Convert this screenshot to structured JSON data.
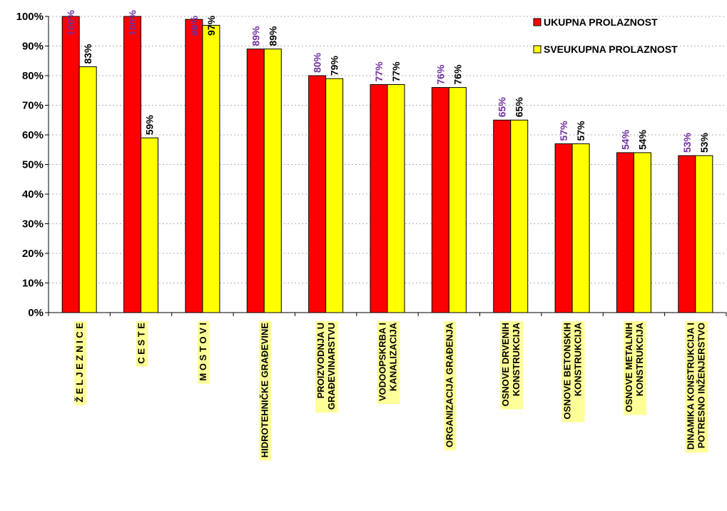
{
  "colors": {
    "series1": "#ff0000",
    "series2": "#ffff00",
    "label1": "#7030a0",
    "label2": "#000000",
    "category_highlight": "#ffff99",
    "grid": "#b0b0b0"
  },
  "chart_data": {
    "type": "bar",
    "title": "",
    "xlabel": "",
    "ylabel": "",
    "ylim": [
      0,
      100
    ],
    "grid": true,
    "legend_position": "top-right",
    "y_tick_labels": [
      "0%",
      "10%",
      "20%",
      "30%",
      "40%",
      "50%",
      "60%",
      "70%",
      "80%",
      "90%",
      "100%"
    ],
    "categories": [
      [
        "Ž E L J E Z N I C E"
      ],
      [
        "C E S T E"
      ],
      [
        "M O S T O V I"
      ],
      [
        "HIDROTEHNIČKE GRAĐEVINE"
      ],
      [
        "PROIZVODNJA U",
        "GRAĐEVINARSTVU"
      ],
      [
        "VODOOPSKRBA I",
        "KANALIZACIJA"
      ],
      [
        "ORGANIZACIJA GRAĐENJA"
      ],
      [
        "OSNOVE DRVENIH",
        "KONSTRUKCIJA"
      ],
      [
        "OSNOVE BETONSKIH",
        "KONSTRUKCIJA"
      ],
      [
        "OSNOVE METALNIH",
        "KONSTRUKCIJA"
      ],
      [
        "DINAMIKA KONSTRUKCIJA I",
        "POTRESNO INŽENJERSTVO"
      ]
    ],
    "series": [
      {
        "name": "UKUPNA PROLAZNOST",
        "values": [
          100,
          100,
          99,
          89,
          80,
          77,
          76,
          65,
          57,
          54,
          53
        ],
        "labels": [
          "100%",
          "100%",
          "99%",
          "89%",
          "80%",
          "77%",
          "76%",
          "65%",
          "57%",
          "54%",
          "53%"
        ]
      },
      {
        "name": "SVEUKUPNA PROLAZNOST",
        "values": [
          83,
          59,
          97,
          89,
          79,
          77,
          76,
          65,
          57,
          54,
          53
        ],
        "labels": [
          "83%",
          "59%",
          "97%",
          "89%",
          "79%",
          "77%",
          "76%",
          "65%",
          "57%",
          "54%",
          "53%"
        ]
      }
    ]
  }
}
